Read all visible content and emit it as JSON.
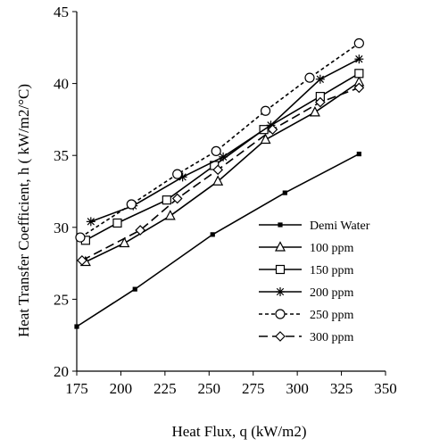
{
  "chart_data": {
    "type": "line",
    "title": "",
    "xlabel": "Heat Flux, q (kW/m2)",
    "ylabel": "Heat Transfer Coefficient, h ( kW/m2/°C)",
    "xlim": [
      175,
      350
    ],
    "ylim": [
      20,
      45
    ],
    "xticks": [
      175,
      200,
      225,
      250,
      275,
      300,
      325,
      350
    ],
    "yticks": [
      20,
      25,
      30,
      35,
      40,
      45
    ],
    "xtick_labels": [
      "175",
      "200",
      "225",
      "250",
      "275",
      "300",
      "325",
      "350"
    ],
    "ytick_labels": [
      "20",
      "25",
      "30",
      "35",
      "40",
      "45"
    ],
    "grid": false,
    "legend_position": "bottom-right",
    "series": [
      {
        "name": "Demi Water",
        "marker": "small-square",
        "dash": "solid",
        "x": [
          175,
          208,
          252,
          293,
          335
        ],
        "y": [
          23.1,
          25.7,
          29.5,
          32.4,
          35.1
        ]
      },
      {
        "name": "100 ppm",
        "marker": "triangle",
        "dash": "solid",
        "x": [
          180,
          202,
          228,
          255,
          282,
          310,
          335
        ],
        "y": [
          27.6,
          28.9,
          30.8,
          33.2,
          36.1,
          38.0,
          40.1
        ]
      },
      {
        "name": "150 ppm",
        "marker": "square",
        "dash": "solid",
        "x": [
          180,
          198,
          226,
          253,
          281,
          313,
          335
        ],
        "y": [
          29.1,
          30.3,
          31.9,
          34.3,
          36.8,
          39.1,
          40.7
        ]
      },
      {
        "name": "200 ppm",
        "marker": "star",
        "dash": "solid",
        "x": [
          183,
          207,
          235,
          258,
          285,
          313,
          335
        ],
        "y": [
          30.4,
          31.5,
          33.5,
          34.9,
          37.1,
          40.3,
          41.7
        ]
      },
      {
        "name": "250 ppm",
        "marker": "circle",
        "dash": "short-dash",
        "x": [
          177,
          206,
          232,
          254,
          282,
          307,
          335
        ],
        "y": [
          29.3,
          31.6,
          33.7,
          35.3,
          38.1,
          40.4,
          42.8
        ]
      },
      {
        "name": "300 ppm",
        "marker": "diamond",
        "dash": "long-dash",
        "x": [
          178,
          211,
          232,
          255,
          286,
          313,
          335
        ],
        "y": [
          27.7,
          29.8,
          32.0,
          34.0,
          36.8,
          38.7,
          39.7
        ]
      }
    ]
  }
}
